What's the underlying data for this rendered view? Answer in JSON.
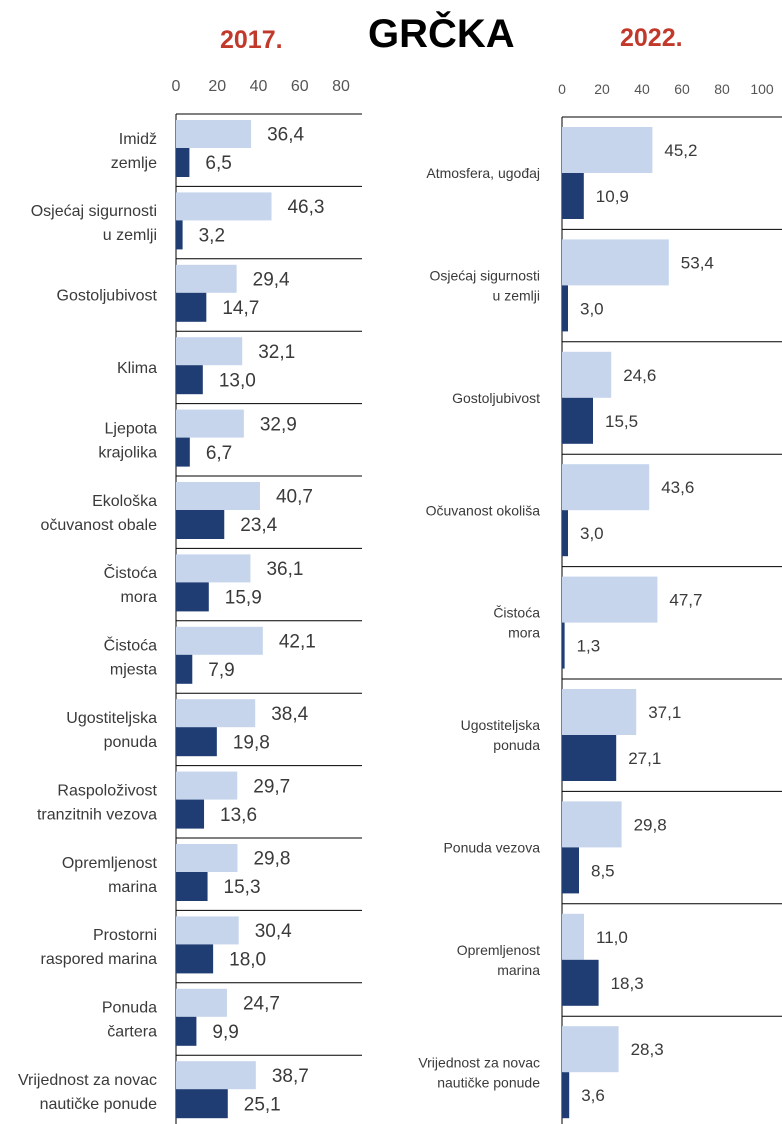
{
  "title": "GRČKA",
  "colors": {
    "light": "#c6d5ec",
    "dark": "#1f3d73",
    "year": "#c0392b",
    "divider": "#000000"
  },
  "chart_data": [
    {
      "type": "bar",
      "orientation": "horizontal",
      "title": "2017.",
      "xlim": [
        0,
        80
      ],
      "ticks": [
        0,
        20,
        40,
        60,
        80
      ],
      "tick_labels": [
        "0",
        "20",
        "40",
        "60",
        "80"
      ],
      "grid": false,
      "categories": [
        [
          "Imidž",
          "zemlje"
        ],
        [
          "Osjećaj sigurnosti",
          "u zemlji"
        ],
        [
          "Gostoljubivost"
        ],
        [
          "Klima"
        ],
        [
          "Ljepota",
          "krajolika"
        ],
        [
          "Ekološka",
          "očuvanost obale"
        ],
        [
          "Čistoća",
          "mora"
        ],
        [
          "Čistoća",
          "mjesta"
        ],
        [
          "Ugostiteljska",
          "ponuda"
        ],
        [
          "Raspoloživost",
          "tranzitnih vezova"
        ],
        [
          "Opremljenost",
          "marina"
        ],
        [
          "Prostorni",
          "raspored marina"
        ],
        [
          "Ponuda",
          "čartera"
        ],
        [
          "Vrijednost za novac",
          "nautičke ponude"
        ]
      ],
      "series": [
        {
          "values": [
            36.4,
            46.3,
            29.4,
            32.1,
            32.9,
            40.7,
            36.1,
            42.1,
            38.4,
            29.7,
            29.8,
            30.4,
            24.7,
            38.7
          ],
          "labels": [
            "36,4",
            "46,3",
            "29,4",
            "32,1",
            "32,9",
            "40,7",
            "36,1",
            "42,1",
            "38,4",
            "29,7",
            "29,8",
            "30,4",
            "24,7",
            "38,7"
          ]
        },
        {
          "values": [
            6.5,
            3.2,
            14.7,
            13.0,
            6.7,
            23.4,
            15.9,
            7.9,
            19.8,
            13.6,
            15.3,
            18.0,
            9.9,
            25.1
          ],
          "labels": [
            "6,5",
            "3,2",
            "14,7",
            "13,0",
            "6,7",
            "23,4",
            "15,9",
            "7,9",
            "19,8",
            "13,6",
            "15,3",
            "18,0",
            "9,9",
            "25,1"
          ]
        }
      ]
    },
    {
      "type": "bar",
      "orientation": "horizontal",
      "title": "2022.",
      "xlim": [
        0,
        100
      ],
      "ticks": [
        0,
        20,
        40,
        60,
        80,
        100
      ],
      "tick_labels": [
        "0",
        "20",
        "40",
        "60",
        "80",
        "100"
      ],
      "grid": false,
      "categories": [
        [
          "Atmosfera, ugođaj"
        ],
        [
          "Osjećaj sigurnosti",
          "u zemlji"
        ],
        [
          "Gostoljubivost"
        ],
        [
          "Očuvanost okoliša"
        ],
        [
          "Čistoća",
          "mora"
        ],
        [
          "Ugostiteljska",
          "ponuda"
        ],
        [
          "Ponuda vezova"
        ],
        [
          "Opremljenost",
          "marina"
        ],
        [
          "Vrijednost za novac",
          "nautičke ponude"
        ]
      ],
      "series": [
        {
          "values": [
            45.2,
            53.4,
            24.6,
            43.6,
            47.7,
            37.1,
            29.8,
            11.0,
            28.3
          ],
          "labels": [
            "45,2",
            "53,4",
            "24,6",
            "43,6",
            "47,7",
            "37,1",
            "29,8",
            "11,0",
            "28,3"
          ]
        },
        {
          "values": [
            10.9,
            3.0,
            15.5,
            3.0,
            1.3,
            27.1,
            8.5,
            18.3,
            3.6
          ],
          "labels": [
            "10,9",
            "3,0",
            "15,5",
            "3,0",
            "1,3",
            "27,1",
            "8,5",
            "18,3",
            "3,6"
          ]
        }
      ]
    }
  ]
}
